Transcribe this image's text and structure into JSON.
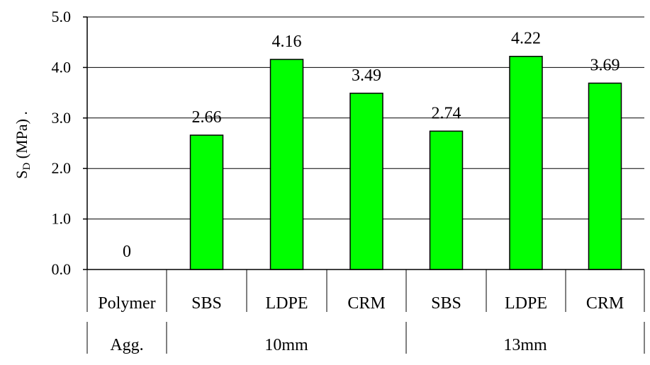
{
  "chart_data": {
    "type": "bar",
    "title": "",
    "xlabel": "",
    "ylabel": {
      "main": "S",
      "subscript": "D",
      "rest": " (MPa) ."
    },
    "ylim": [
      0,
      5.0
    ],
    "yticks": [
      "0.0",
      "1.0",
      "2.0",
      "3.0",
      "4.0",
      "5.0"
    ],
    "grid": true,
    "legend": "none",
    "bar_color": "#00ff00",
    "categories": [
      "Polymer",
      "SBS",
      "LDPE",
      "CRM",
      "SBS",
      "LDPE",
      "CRM"
    ],
    "values": [
      0,
      2.66,
      4.16,
      3.49,
      2.74,
      4.22,
      3.69
    ],
    "value_labels": [
      "0",
      "2.66",
      "4.16",
      "3.49",
      "2.74",
      "4.22",
      "3.69"
    ],
    "groups_header": "Agg.",
    "groups": [
      {
        "label": "10mm",
        "span": [
          1,
          3
        ]
      },
      {
        "label": "13mm",
        "span": [
          4,
          6
        ]
      }
    ]
  }
}
